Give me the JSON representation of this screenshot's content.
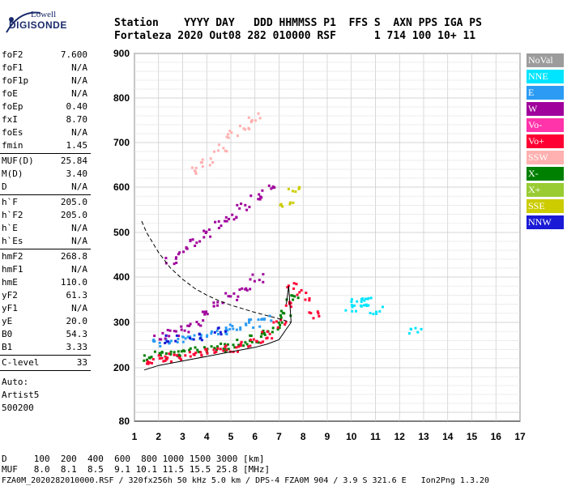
{
  "logo": {
    "brand": "Lowell",
    "name": "DIGISONDE"
  },
  "header": {
    "labels_line": "Station    YYYY DAY   DDD HHMMSS P1  FFS S  AXN PPS IGA PS",
    "values_line": "Fortaleza 2020 Out08 282 010000 RSF      1 714 100 10+ 11"
  },
  "params": [
    {
      "name": "foF2",
      "value": "7.600"
    },
    {
      "name": "foF1",
      "value": "N/A"
    },
    {
      "name": "foF1p",
      "value": "N/A"
    },
    {
      "name": "foE",
      "value": "N/A"
    },
    {
      "name": "foEp",
      "value": "0.40"
    },
    {
      "name": "fxI",
      "value": "8.70"
    },
    {
      "name": "foEs",
      "value": "N/A"
    },
    {
      "name": "fmin",
      "value": "1.45"
    },
    {
      "name": "MUF(D)",
      "value": "25.84"
    },
    {
      "name": "M(D)",
      "value": "3.40"
    },
    {
      "name": "D",
      "value": "N/A"
    },
    {
      "name": "h`F",
      "value": "205.0"
    },
    {
      "name": "h`F2",
      "value": "205.0"
    },
    {
      "name": "h`E",
      "value": "N/A"
    },
    {
      "name": "h`Es",
      "value": "N/A"
    },
    {
      "name": "hmF2",
      "value": "268.8"
    },
    {
      "name": "hmF1",
      "value": "N/A"
    },
    {
      "name": "hmE",
      "value": "110.0"
    },
    {
      "name": "yF2",
      "value": "61.3"
    },
    {
      "name": "yF1",
      "value": "N/A"
    },
    {
      "name": "yE",
      "value": "20.0"
    },
    {
      "name": "B0",
      "value": "54.3"
    },
    {
      "name": "B1",
      "value": "3.33"
    },
    {
      "name": "C-level",
      "value": "33"
    }
  ],
  "auto": [
    "Auto:",
    "Artist5",
    "500200"
  ],
  "legend": [
    {
      "label": "NoVal",
      "color": "#9c9c9c"
    },
    {
      "label": "NNE",
      "color": "#00e5ff"
    },
    {
      "label": "E",
      "color": "#2b9bf4"
    },
    {
      "label": "W",
      "color": "#a0009c"
    },
    {
      "label": "Vo-",
      "color": "#ff33aa"
    },
    {
      "label": "Vo+",
      "color": "#ff0033"
    },
    {
      "label": "SSW",
      "color": "#ffb0b0"
    },
    {
      "label": "X-",
      "color": "#008000"
    },
    {
      "label": "X+",
      "color": "#99cc33"
    },
    {
      "label": "SSE",
      "color": "#cccc00"
    },
    {
      "label": "NNW",
      "color": "#1a1ad6"
    }
  ],
  "bottom": {
    "line1": "D     100  200  400  600  800 1000 1500 3000 [km]",
    "line2": "MUF   8.0  8.1  8.5  9.1 10.1 11.5 15.5 25.8 [MHz]",
    "line3": "FZA0M_2020282010000.RSF / 320fx256h 50 kHz 5.0 km / DPS-4 FZA0M 904 / 3.9 S 321.6 E   Ion2Png 1.3.20"
  },
  "chart_data": {
    "type": "scatter",
    "title": "",
    "xlabel": "",
    "ylabel": "",
    "xlim": [
      1,
      17
    ],
    "ylim": [
      80,
      900
    ],
    "x_ticks": [
      "1",
      "2",
      "3",
      "4",
      "5",
      "6",
      "7",
      "8",
      "9",
      "10",
      "11",
      "12",
      "13",
      "14",
      "15",
      "16",
      "17"
    ],
    "y_ticks": [
      "80",
      "200",
      "300",
      "400",
      "500",
      "600",
      "700",
      "800",
      "900"
    ],
    "y_tick_values": [
      80,
      200,
      300,
      400,
      500,
      600,
      700,
      800,
      900
    ],
    "grid": true,
    "legend_placement": "right",
    "series": [
      {
        "name": "X-",
        "color": "#008000",
        "x": [
          1.6,
          2.0,
          2.5,
          3.0,
          3.5,
          4.0,
          4.5,
          5.0,
          5.5,
          6.0,
          6.5,
          7.0,
          7.3,
          7.5
        ],
        "y": [
          225,
          230,
          233,
          236,
          240,
          243,
          247,
          252,
          258,
          265,
          275,
          295,
          320,
          360
        ]
      },
      {
        "name": "Vo+",
        "color": "#ff0033",
        "x": [
          1.5,
          2.0,
          2.5,
          3.0,
          3.5,
          4.0,
          4.5,
          5.0,
          5.5,
          6.0,
          6.5,
          7.0,
          7.4,
          7.6,
          8.0,
          8.5
        ],
        "y": [
          220,
          222,
          225,
          228,
          231,
          235,
          240,
          246,
          253,
          262,
          275,
          300,
          340,
          380,
          360,
          320
        ]
      },
      {
        "name": "E",
        "color": "#2b9bf4",
        "x": [
          2.0,
          2.5,
          3.0,
          3.5,
          4.0,
          4.5,
          5.0,
          5.5,
          6.0,
          6.5
        ],
        "y": [
          258,
          262,
          266,
          270,
          275,
          282,
          290,
          295,
          300,
          310
        ]
      },
      {
        "name": "W",
        "color": "#a0009c",
        "x": [
          2.0,
          2.5,
          3.0,
          3.5,
          4.0,
          4.5,
          5.0,
          5.5,
          6.0,
          2.5,
          3.0,
          3.5,
          4.0,
          4.5,
          5.0,
          5.5,
          6.0,
          6.5
        ],
        "y": [
          270,
          280,
          290,
          300,
          320,
          340,
          360,
          380,
          400,
          440,
          460,
          480,
          500,
          520,
          540,
          560,
          580,
          600
        ]
      },
      {
        "name": "NNE",
        "color": "#00e5ff",
        "x": [
          10.0,
          10.2,
          10.5,
          10.7,
          11.0,
          12.6
        ],
        "y": [
          335,
          345,
          340,
          350,
          330,
          285
        ]
      },
      {
        "name": "SSW",
        "color": "#ffb0b0",
        "x": [
          3.5,
          4.0,
          4.5,
          5.0,
          5.5,
          6.0
        ],
        "y": [
          640,
          660,
          690,
          720,
          740,
          760
        ]
      },
      {
        "name": "SSE",
        "color": "#cccc00",
        "x": [
          7.3,
          7.5
        ],
        "y": [
          560,
          600
        ]
      },
      {
        "name": "NNW",
        "color": "#1a1ad6",
        "x": [
          2.5,
          3.5,
          4.5
        ],
        "y": [
          265,
          272,
          282
        ]
      }
    ],
    "curves": [
      {
        "style": "solid",
        "x": [
          1.4,
          2.0,
          3.0,
          4.0,
          5.0,
          6.0,
          6.5,
          7.0,
          7.3,
          7.5
        ],
        "y": [
          195,
          205,
          215,
          225,
          235,
          245,
          252,
          262,
          285,
          300
        ]
      },
      {
        "style": "solid",
        "x": [
          7.3,
          7.4,
          7.5
        ],
        "y": [
          340,
          380,
          300
        ]
      },
      {
        "style": "dashed",
        "x": [
          1.3,
          1.5,
          2.0,
          2.5,
          3.0,
          3.5,
          4.0,
          4.5,
          5.0,
          5.5,
          6.0,
          6.5,
          7.0,
          7.5
        ],
        "y": [
          525,
          500,
          455,
          420,
          395,
          375,
          360,
          348,
          338,
          330,
          322,
          315,
          308,
          300
        ]
      }
    ]
  }
}
